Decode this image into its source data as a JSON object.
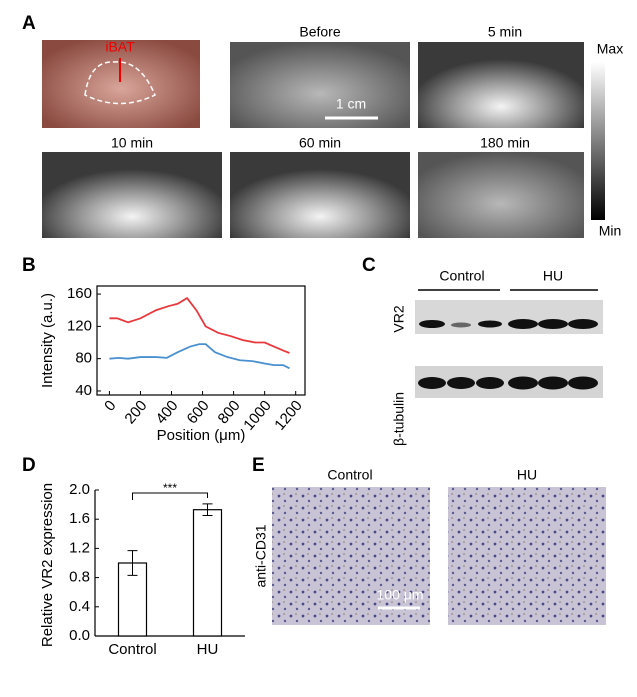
{
  "panels": {
    "a": {
      "letter": "A",
      "tag": "iBAT",
      "captions": [
        "Before",
        "5 min",
        "10 min",
        "60 min",
        "180 min"
      ],
      "scale_bar": "1 cm",
      "colorbar": [
        "Max",
        "Min"
      ]
    },
    "c": {
      "letter": "C",
      "groups": [
        "Control",
        "HU"
      ],
      "rows": [
        "VR2",
        "β-tubulin"
      ]
    },
    "e": {
      "letter": "E",
      "captions": [
        "Control",
        "HU"
      ],
      "stain": "anti-CD31",
      "scale_bar": "100 μm"
    }
  },
  "chart_data": [
    {
      "type": "line",
      "panel": "B",
      "xlabel": "Position (μm)",
      "ylabel": "Intensity (a.u.)",
      "xlim": [
        -80,
        1260
      ],
      "xticks": [
        0,
        200,
        400,
        600,
        800,
        1000,
        1200
      ],
      "ylim": [
        35,
        170
      ],
      "yticks": [
        40,
        80,
        120,
        160
      ],
      "series": [
        {
          "color": "#e8383d",
          "x": [
            0,
            50,
            120,
            200,
            300,
            380,
            440,
            500,
            560,
            620,
            700,
            780,
            860,
            940,
            1000,
            1060,
            1120,
            1160
          ],
          "values": [
            130,
            130,
            125,
            130,
            140,
            145,
            148,
            155,
            140,
            120,
            112,
            108,
            103,
            100,
            100,
            95,
            90,
            87
          ]
        },
        {
          "color": "#4a90d0",
          "x": [
            0,
            60,
            120,
            200,
            300,
            370,
            440,
            520,
            580,
            620,
            680,
            760,
            840,
            920,
            1000,
            1060,
            1120,
            1160
          ],
          "values": [
            80,
            81,
            80,
            82,
            82,
            81,
            88,
            95,
            98,
            98,
            88,
            82,
            78,
            77,
            74,
            72,
            72,
            68
          ]
        }
      ]
    },
    {
      "type": "bar",
      "panel": "D",
      "ylabel": "Relative VR2 expression",
      "categories": [
        "Control",
        "HU"
      ],
      "values": [
        1.0,
        1.73
      ],
      "errors": [
        0.17,
        0.08
      ],
      "color": "#ffffff",
      "annotation": "***",
      "ylim": [
        0,
        2.0
      ],
      "yticks": [
        {
          "value": 0,
          "label": "0.0"
        },
        {
          "value": 0.4,
          "label": "0.4"
        },
        {
          "value": 0.8,
          "label": "0.8"
        },
        {
          "value": 1.2,
          "label": "1.2"
        },
        {
          "value": 1.6,
          "label": "1.6"
        },
        {
          "value": 2.0,
          "label": "2.0"
        }
      ]
    }
  ]
}
